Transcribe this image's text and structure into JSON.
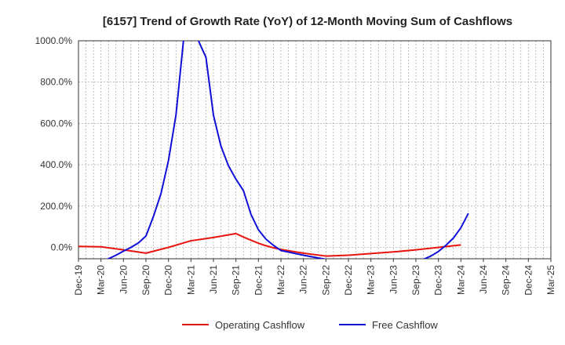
{
  "chart_data": {
    "type": "line",
    "title": "[6157]  Trend of Growth Rate (YoY) of 12-Month Moving Sum of Cashflows",
    "xlabel": "",
    "ylabel": "",
    "ylim": [
      -55,
      1000
    ],
    "yticks": [
      0,
      200,
      400,
      600,
      800,
      1000
    ],
    "ytick_labels": [
      "0.0%",
      "200.0%",
      "400.0%",
      "600.0%",
      "800.0%",
      "1000.0%"
    ],
    "x_start": "Dec-19",
    "x_end": "Mar-25",
    "x_tick_labels": [
      "Dec-19",
      "Mar-20",
      "Jun-20",
      "Sep-20",
      "Dec-20",
      "Mar-21",
      "Jun-21",
      "Sep-21",
      "Dec-21",
      "Mar-22",
      "Jun-22",
      "Sep-22",
      "Dec-22",
      "Mar-23",
      "Jun-23",
      "Sep-23",
      "Dec-23",
      "Mar-24",
      "Jun-24",
      "Sep-24",
      "Dec-24",
      "Mar-25"
    ],
    "grid": true,
    "legend_position": "bottom",
    "series": [
      {
        "name": "Operating Cashflow",
        "color": "#e8140e",
        "points": [
          [
            "Dec-19",
            5
          ],
          [
            "Mar-20",
            3
          ],
          [
            "Jun-20",
            -12
          ],
          [
            "Sep-20",
            -28
          ],
          [
            "Dec-20",
            0
          ],
          [
            "Mar-21",
            32
          ],
          [
            "Jun-21",
            48
          ],
          [
            "Sep-21",
            67
          ],
          [
            "Oct-21",
            50
          ],
          [
            "Nov-21",
            35
          ],
          [
            "Dec-21",
            20
          ],
          [
            "Jan-22",
            8
          ],
          [
            "Feb-22",
            -2
          ],
          [
            "Mar-22",
            -10
          ],
          [
            "Jun-22",
            -28
          ],
          [
            "Sep-22",
            -42
          ],
          [
            "Dec-22",
            -38
          ],
          [
            "Mar-23",
            -30
          ],
          [
            "Jun-23",
            -22
          ],
          [
            "Sep-23",
            -12
          ],
          [
            "Dec-23",
            0
          ],
          [
            "Mar-24",
            12
          ]
        ]
      },
      {
        "name": "Free Cashflow",
        "color": "#1010d8",
        "points": [
          [
            "Dec-19",
            -68
          ],
          [
            "Mar-20",
            -70
          ],
          [
            "Apr-20",
            -55
          ],
          [
            "May-20",
            -38
          ],
          [
            "Jun-20",
            -18
          ],
          [
            "Jul-20",
            0
          ],
          [
            "Aug-20",
            22
          ],
          [
            "Sep-20",
            55
          ],
          [
            "Oct-20",
            150
          ],
          [
            "Nov-20",
            260
          ],
          [
            "Dec-20",
            420
          ],
          [
            "Jan-21",
            640
          ],
          [
            "Feb-21",
            1000
          ],
          [
            "Mar-21",
            1200
          ],
          [
            "Apr-21",
            1000
          ],
          [
            "May-21",
            920
          ],
          [
            "Jun-21",
            640
          ],
          [
            "Jul-21",
            490
          ],
          [
            "Aug-21",
            395
          ],
          [
            "Sep-21",
            330
          ],
          [
            "Oct-21",
            275
          ],
          [
            "Nov-21",
            160
          ],
          [
            "Dec-21",
            85
          ],
          [
            "Jan-22",
            40
          ],
          [
            "Feb-22",
            10
          ],
          [
            "Mar-22",
            -15
          ],
          [
            "Jun-22",
            -38
          ],
          [
            "Sep-22",
            -58
          ],
          [
            "Dec-22",
            -65
          ],
          [
            "Mar-23",
            -74
          ],
          [
            "Jun-23",
            -74
          ],
          [
            "Sep-23",
            -72
          ],
          [
            "Oct-23",
            -58
          ],
          [
            "Nov-23",
            -42
          ],
          [
            "Dec-23",
            -20
          ],
          [
            "Jan-24",
            10
          ],
          [
            "Feb-24",
            45
          ],
          [
            "Mar-24",
            95
          ],
          [
            "Apr-24",
            165
          ]
        ]
      }
    ]
  }
}
